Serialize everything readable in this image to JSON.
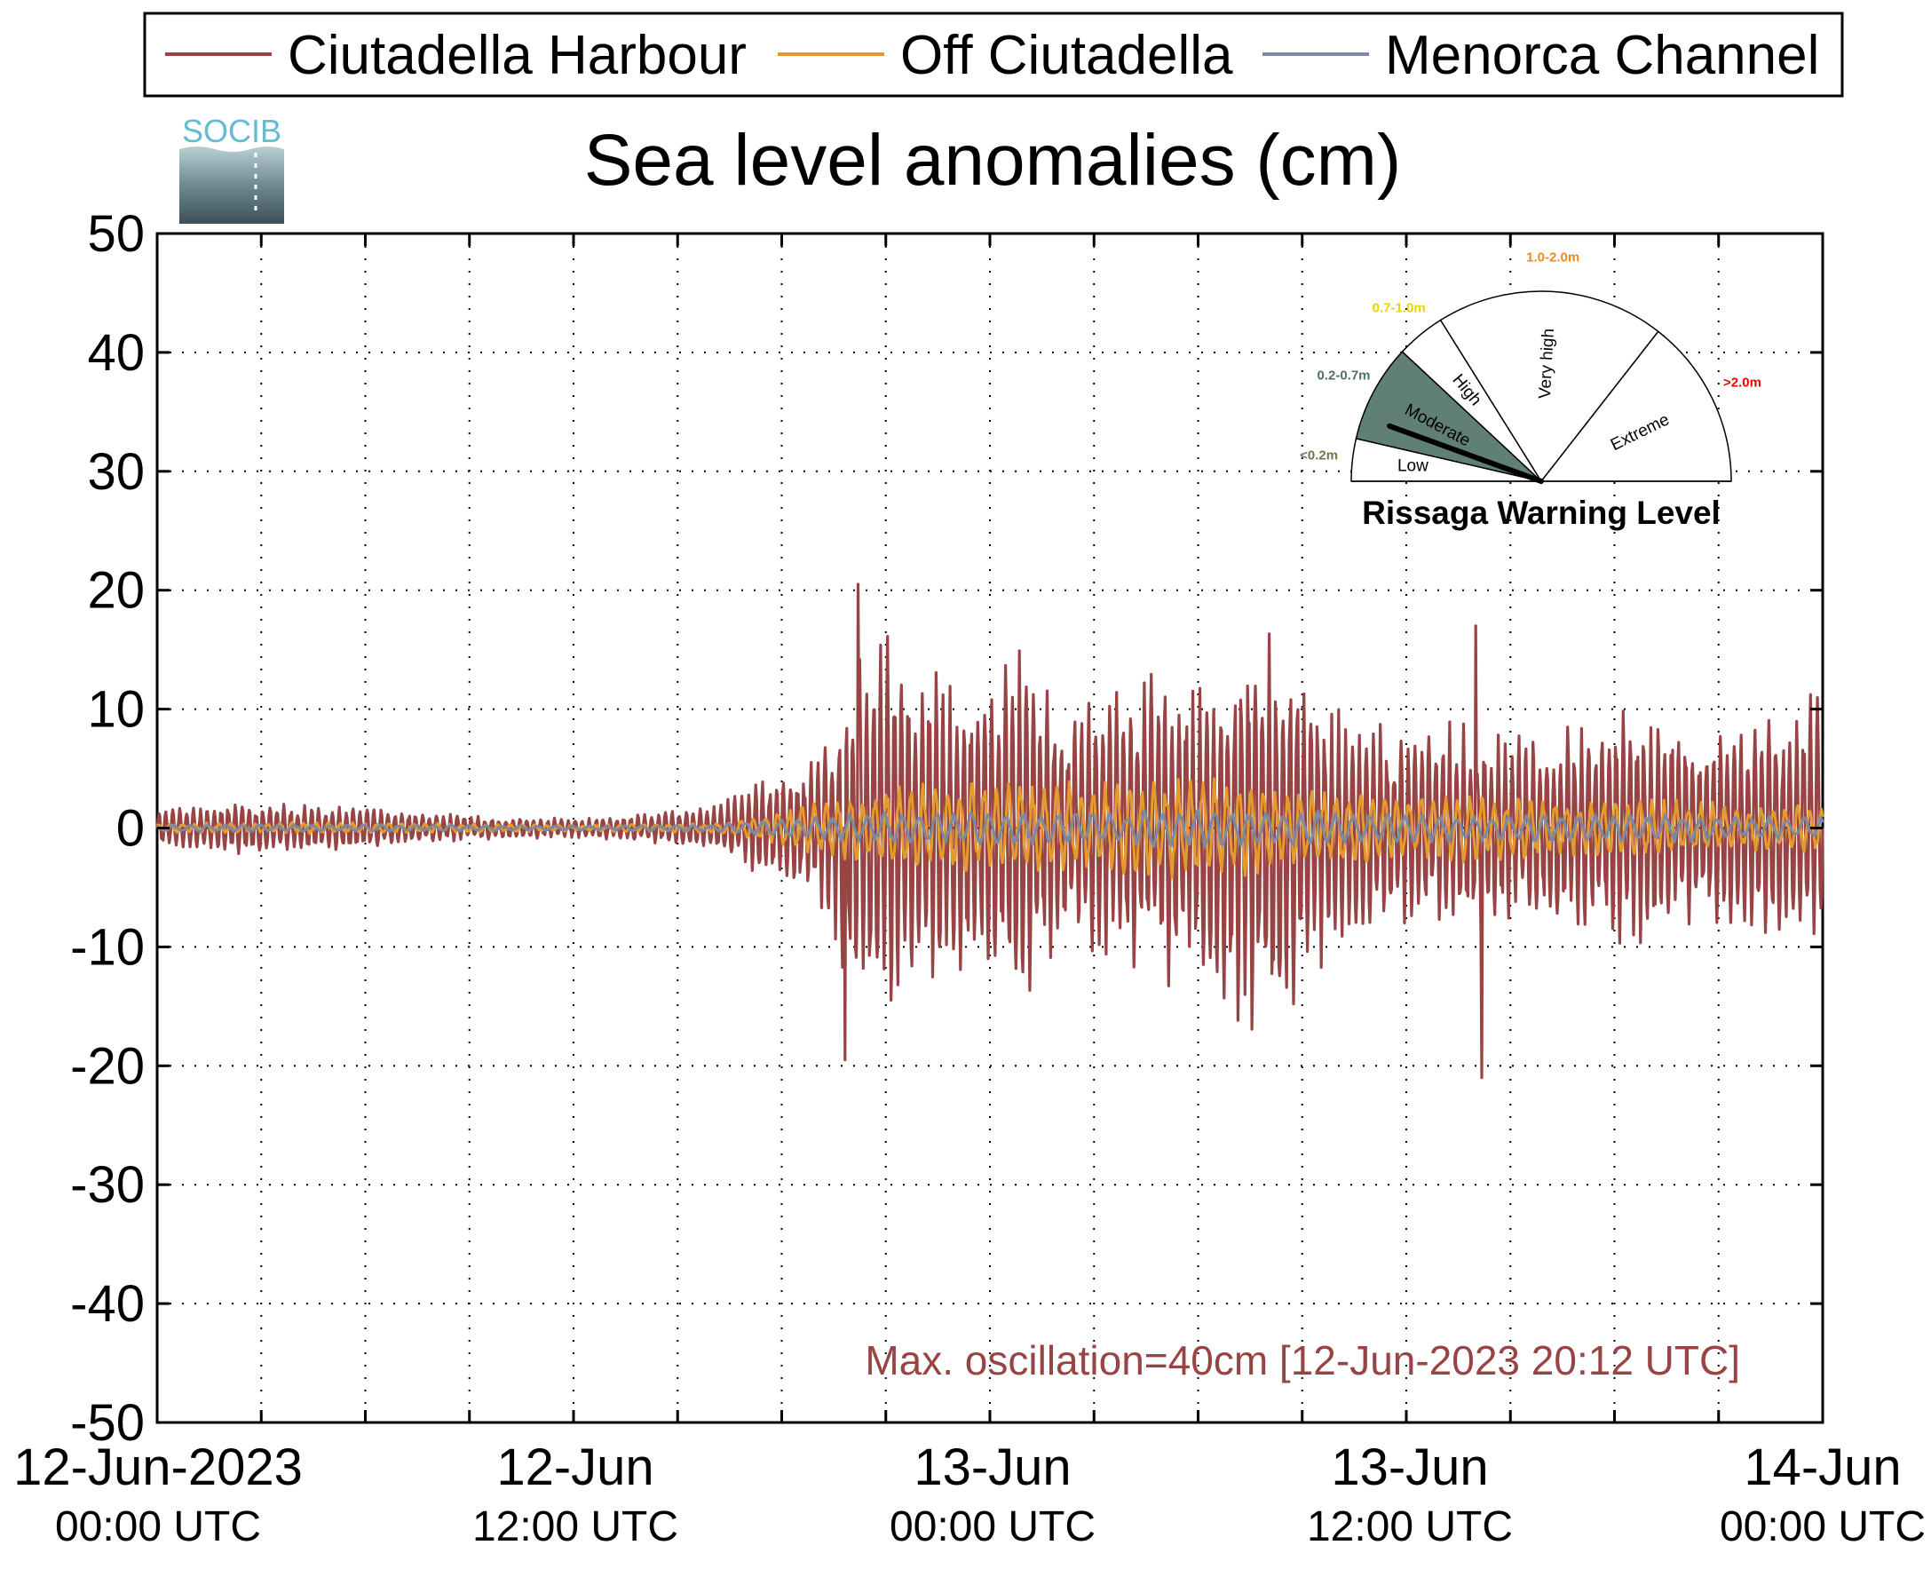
{
  "colors": {
    "harbour": "#994444",
    "off": "#e39b2e",
    "channel": "#7b8aa3",
    "gauge_low_label": "#6b7a4a",
    "gauge_moderate_label": "#4f6f66",
    "gauge_high_label": "#e8d400",
    "gauge_veryhigh_label": "#ef8a1a",
    "gauge_extreme_label": "#ee0000",
    "gauge_moderate_fill": "#5f7f77",
    "logo_text": "#63bcd0",
    "annotation": "#994444"
  },
  "legend": [
    {
      "label": "Ciutadella Harbour",
      "color_key": "harbour"
    },
    {
      "label": "Off Ciutadella",
      "color_key": "off"
    },
    {
      "label": "Menorca Channel",
      "color_key": "channel"
    }
  ],
  "logo": {
    "text": "SOCIB"
  },
  "chart_data": {
    "type": "line",
    "title": "Sea level anomalies (cm)",
    "xlabel": "",
    "ylabel": "",
    "ylim": [
      -50,
      50
    ],
    "yticks": [
      "50",
      "40",
      "30",
      "20",
      "10",
      "0",
      "-10",
      "-20",
      "-30",
      "-40",
      "-50"
    ],
    "xlim": [
      "2023-06-12 00:00 UTC",
      "2023-06-14 00:00 UTC"
    ],
    "xtick_labels": [
      {
        "date": "12-Jun-2023",
        "time": "00:00 UTC"
      },
      {
        "date": "12-Jun",
        "time": "12:00 UTC"
      },
      {
        "date": "13-Jun",
        "time": "00:00 UTC"
      },
      {
        "date": "13-Jun",
        "time": "12:00 UTC"
      },
      {
        "date": "14-Jun",
        "time": "00:00 UTC"
      }
    ],
    "grid": true,
    "legend_position": "top",
    "series": [
      {
        "name": "Ciutadella Harbour",
        "hours": [
          0,
          2,
          4,
          6,
          8,
          10,
          12,
          14,
          16,
          18,
          19,
          20,
          21,
          22,
          23,
          24,
          25,
          26,
          27,
          28,
          29,
          30,
          31,
          32,
          33,
          34,
          35,
          36,
          37,
          38,
          39,
          40,
          41,
          42,
          43,
          44,
          45,
          46,
          47,
          48
        ],
        "envelope_cm": [
          1.5,
          2.2,
          2,
          1.8,
          1.2,
          1,
          0.8,
          1.2,
          1.8,
          5,
          6,
          15,
          17,
          14,
          12,
          13,
          16,
          10,
          11,
          12,
          14,
          12,
          17,
          18,
          14,
          10,
          9,
          8,
          9,
          9,
          8,
          8,
          9,
          10,
          10,
          9,
          8,
          9,
          10,
          12
        ],
        "notable_points": [
          {
            "time": "2023-06-12 20:12",
            "value": 20.5
          },
          {
            "time": "2023-06-12 19:50",
            "value": -19.5
          },
          {
            "time": "2023-06-13 14:10",
            "value": -21
          },
          {
            "time": "2023-06-13 14:00",
            "value": 17
          }
        ]
      },
      {
        "name": "Off Ciutadella",
        "hours": [
          0,
          4,
          8,
          12,
          16,
          18,
          20,
          22,
          24,
          26,
          28,
          30,
          32,
          34,
          36,
          38,
          40,
          42,
          44,
          46,
          48
        ],
        "envelope_cm": [
          0.4,
          0.5,
          0.4,
          0.3,
          0.4,
          1.5,
          3,
          4,
          4,
          4,
          4,
          4.5,
          4,
          3.5,
          3,
          3,
          2.5,
          2.5,
          2.5,
          2,
          2
        ]
      },
      {
        "name": "Menorca Channel",
        "hours": [
          0,
          4,
          8,
          12,
          16,
          18,
          20,
          22,
          24,
          26,
          28,
          30,
          32,
          34,
          36,
          38,
          40,
          42,
          44,
          46,
          48
        ],
        "envelope_cm": [
          0.3,
          0.3,
          0.3,
          0.2,
          0.3,
          0.8,
          1.2,
          1.5,
          1.5,
          1.5,
          1.5,
          1.8,
          1.5,
          1.5,
          1.2,
          1.2,
          1.2,
          1.2,
          1.2,
          1,
          1
        ]
      }
    ],
    "annotations": [
      "Max. oscillation=40cm [12-Jun-2023 20:12 UTC]"
    ]
  },
  "gauge": {
    "title": "Rissaga Warning Level",
    "sectors": [
      {
        "name": "Low",
        "range": "<0.2m",
        "range_color_key": "gauge_low_label"
      },
      {
        "name": "Moderate",
        "range": "0.2-0.7m",
        "range_color_key": "gauge_moderate_label"
      },
      {
        "name": "High",
        "range": "0.7-1.0m",
        "range_color_key": "gauge_high_label"
      },
      {
        "name": "Very high",
        "range": "1.0-2.0m",
        "range_color_key": "gauge_veryhigh_label"
      },
      {
        "name": "Extreme",
        "range": ">2.0m",
        "range_color_key": "gauge_extreme_label"
      }
    ],
    "current_level": "Moderate",
    "needle_angle_deg": 160
  }
}
